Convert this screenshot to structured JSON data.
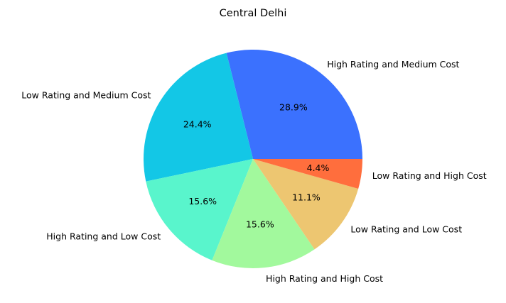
{
  "chart_data": {
    "type": "pie",
    "title": "Central Delhi",
    "start_angle": 0,
    "direction": "counterclockwise",
    "slices": [
      {
        "label": "High Rating and Medium Cost",
        "value": 28.9,
        "pct_label": "28.9%",
        "color": "#3b71fe"
      },
      {
        "label": "Low Rating and Medium Cost",
        "value": 24.4,
        "pct_label": "24.4%",
        "color": "#13c7e6"
      },
      {
        "label": "High Rating and Low Cost",
        "value": 15.6,
        "pct_label": "15.6%",
        "color": "#59f5cc"
      },
      {
        "label": "High Rating and High Cost",
        "value": 15.6,
        "pct_label": "15.6%",
        "color": "#a2f99d"
      },
      {
        "label": "Low Rating and Low Cost",
        "value": 11.1,
        "pct_label": "11.1%",
        "color": "#edc671"
      },
      {
        "label": "Low Rating and High Cost",
        "value": 4.4,
        "pct_label": "4.4%",
        "color": "#ff6e3d"
      }
    ]
  }
}
